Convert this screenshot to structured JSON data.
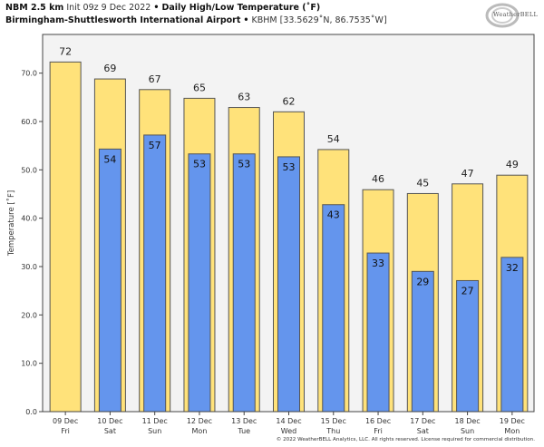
{
  "header": {
    "model": "NBM 2.5 km",
    "init": "Init 09z 9 Dec 2022",
    "separator": "•",
    "product": "Daily High/Low Temperature (˚F)",
    "location": "Birmingham-Shuttlesworth International Airport",
    "station": "KBHM [33.5629˚N, 86.7535˚W]"
  },
  "logo": {
    "text": "WeatherBELL"
  },
  "footer": {
    "copyright": "© 2022 WeatherBELL Analytics, LLC. All rights reserved. License required for commercial distribution."
  },
  "colors": {
    "high": "#ffe27a",
    "low": "#6495ed",
    "plot_bg": "#f3f3f3",
    "edge": "#555555"
  },
  "chart_data": {
    "type": "bar",
    "title": "Daily High/Low Temperature (˚F)",
    "xlabel": "",
    "ylabel": "Temperature [˚F]",
    "ylim": [
      0,
      78
    ],
    "yticks": [
      "0.0",
      "10.0",
      "20.0",
      "30.0",
      "40.0",
      "50.0",
      "60.0",
      "70.0"
    ],
    "ytick_values": [
      0,
      10,
      20,
      30,
      40,
      50,
      60,
      70
    ],
    "categories": [
      {
        "date": "09 Dec",
        "day": "Fri"
      },
      {
        "date": "10 Dec",
        "day": "Sat"
      },
      {
        "date": "11 Dec",
        "day": "Sun"
      },
      {
        "date": "12 Dec",
        "day": "Mon"
      },
      {
        "date": "13 Dec",
        "day": "Tue"
      },
      {
        "date": "14 Dec",
        "day": "Wed"
      },
      {
        "date": "15 Dec",
        "day": "Thu"
      },
      {
        "date": "16 Dec",
        "day": "Fri"
      },
      {
        "date": "17 Dec",
        "day": "Sat"
      },
      {
        "date": "18 Dec",
        "day": "Sun"
      },
      {
        "date": "19 Dec",
        "day": "Mon"
      }
    ],
    "series": [
      {
        "name": "High",
        "values": [
          72.3,
          68.8,
          66.6,
          64.8,
          62.9,
          62.0,
          54.2,
          45.9,
          45.1,
          47.1,
          48.9
        ],
        "labels": [
          "72",
          "69",
          "67",
          "65",
          "63",
          "62",
          "54",
          "46",
          "45",
          "47",
          "49"
        ]
      },
      {
        "name": "Low",
        "values": [
          null,
          54.3,
          57.2,
          53.3,
          53.3,
          52.7,
          42.8,
          32.8,
          29.0,
          27.1,
          31.9
        ],
        "labels": [
          null,
          "54",
          "57",
          "53",
          "53",
          "53",
          "43",
          "33",
          "29",
          "27",
          "32"
        ]
      }
    ]
  }
}
